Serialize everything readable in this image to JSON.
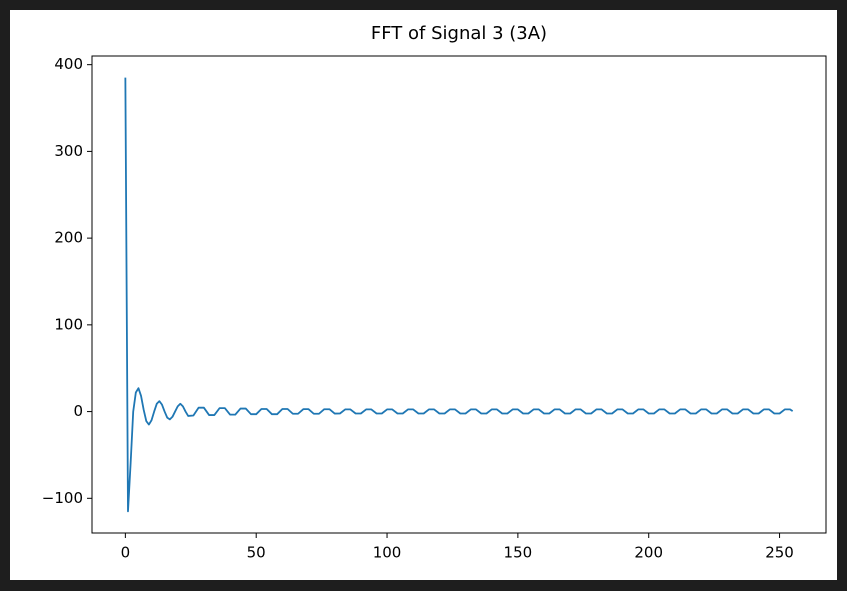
{
  "chart_data": {
    "type": "line",
    "title": "FFT of Signal 3 (3A)",
    "x": [
      0,
      1,
      2,
      3,
      4,
      5,
      6,
      7,
      8,
      9,
      10,
      11,
      12,
      13,
      14,
      15,
      16,
      17,
      18,
      19,
      20,
      21,
      22,
      23,
      24,
      26,
      28,
      30,
      32,
      34,
      36,
      38,
      40,
      42,
      44,
      46,
      48,
      50,
      52,
      54,
      56,
      58,
      60,
      62,
      64,
      66,
      68,
      70,
      72,
      74,
      76,
      78,
      80,
      82,
      84,
      86,
      88,
      90,
      92,
      94,
      96,
      98,
      100,
      102,
      104,
      106,
      108,
      110,
      112,
      114,
      116,
      118,
      120,
      122,
      124,
      126,
      128,
      130,
      132,
      134,
      136,
      138,
      140,
      142,
      144,
      146,
      148,
      150,
      152,
      154,
      156,
      158,
      160,
      162,
      164,
      166,
      168,
      170,
      172,
      174,
      176,
      178,
      180,
      182,
      184,
      186,
      188,
      190,
      192,
      194,
      196,
      198,
      200,
      202,
      204,
      206,
      208,
      210,
      212,
      214,
      216,
      218,
      220,
      222,
      224,
      226,
      228,
      230,
      232,
      234,
      236,
      238,
      240,
      242,
      244,
      246,
      248,
      250,
      252,
      254,
      255
    ],
    "series": [
      {
        "color": "#1f77b4",
        "values": [
          385,
          -115,
          -60,
          0,
          22,
          27,
          18,
          2,
          -11,
          -15,
          -10,
          0,
          9,
          12,
          8,
          0,
          -7,
          -9,
          -6,
          0,
          6,
          9,
          6,
          0,
          -5,
          -4.5,
          4.5,
          4.5,
          -4,
          -4,
          4,
          4,
          -3.5,
          -3.5,
          3.5,
          3.5,
          -3,
          -3,
          3,
          3,
          -3,
          -3,
          3,
          3,
          -2.5,
          -2.5,
          2.8,
          2.8,
          -2.5,
          -2.5,
          2.7,
          2.7,
          -2.3,
          -2.2,
          2.5,
          2.5,
          -2.2,
          -2.2,
          2.5,
          2.5,
          -2.2,
          -2.2,
          2.5,
          2.5,
          -2.2,
          -2.2,
          2.5,
          2.5,
          -2.2,
          -2.2,
          2.5,
          2.5,
          -2.2,
          -2.2,
          2.5,
          2.5,
          -2.2,
          -2.2,
          2.5,
          2.5,
          -2.2,
          -2.2,
          2.5,
          2.5,
          -2.2,
          -2.2,
          2.5,
          2.5,
          -2.2,
          -2.2,
          2.5,
          2.5,
          -2.2,
          -2.2,
          2.5,
          2.5,
          -2.2,
          -2.2,
          2.5,
          2.5,
          -2.2,
          -2.2,
          2.5,
          2.5,
          -2.2,
          -2.2,
          2.5,
          2.5,
          -2.2,
          -2.2,
          2.5,
          2.5,
          -2.2,
          -2.2,
          2.5,
          2.5,
          -2.2,
          -2.2,
          2.5,
          2.5,
          -2.2,
          -2.2,
          2.5,
          2.5,
          -2.2,
          -2.2,
          2.5,
          2.5,
          -2.2,
          -2.2,
          2.5,
          2.5,
          -2.2,
          -2.2,
          2.5,
          2.5,
          -2.2,
          -2.2,
          2.5,
          2.5,
          0.5
        ]
      }
    ],
    "xlim": [
      -12.75,
      267.75
    ],
    "ylim": [
      -140,
      410
    ],
    "xticks": [
      0,
      50,
      100,
      150,
      200,
      250
    ],
    "yticks": [
      {
        "value": -100,
        "label": "−100"
      },
      0,
      100,
      200,
      300,
      400
    ]
  }
}
